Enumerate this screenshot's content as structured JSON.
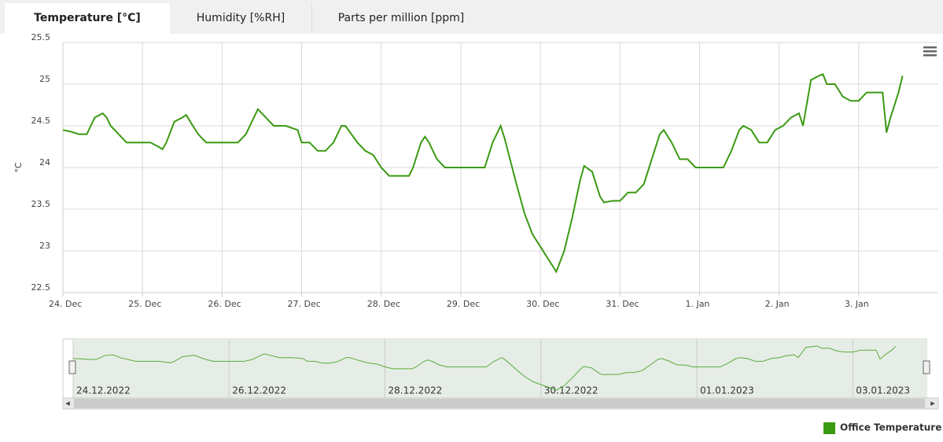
{
  "tabs": [
    "Temperature [°C]",
    "Humidity [%RH]",
    "Parts per million [ppm]"
  ],
  "chart_data": {
    "type": "line",
    "y_label": "°C",
    "xlim": [
      0,
      11
    ],
    "ylim": [
      22.5,
      25.5
    ],
    "xticks": [
      {
        "value": 0,
        "label": "24. Dec"
      },
      {
        "value": 1,
        "label": "25. Dec"
      },
      {
        "value": 2,
        "label": "26. Dec"
      },
      {
        "value": 3,
        "label": "27. Dec"
      },
      {
        "value": 4,
        "label": "28. Dec"
      },
      {
        "value": 5,
        "label": "29. Dec"
      },
      {
        "value": 6,
        "label": "30. Dec"
      },
      {
        "value": 7,
        "label": "31. Dec"
      },
      {
        "value": 8,
        "label": "1. Jan"
      },
      {
        "value": 9,
        "label": "2. Jan"
      },
      {
        "value": 10,
        "label": "3. Jan"
      }
    ],
    "yticks": [
      22.5,
      23,
      23.5,
      24,
      24.5,
      25,
      25.5
    ],
    "grid": true,
    "legend": "bottom-right",
    "x": [
      0,
      0.1,
      0.2,
      0.3,
      0.35,
      0.4,
      0.5,
      0.55,
      0.6,
      0.7,
      0.8,
      0.9,
      1.0,
      1.1,
      1.2,
      1.25,
      1.3,
      1.4,
      1.5,
      1.55,
      1.6,
      1.7,
      1.8,
      2.2,
      2.3,
      2.4,
      2.45,
      2.55,
      2.65,
      2.8,
      2.95,
      3.0,
      3.1,
      3.2,
      3.3,
      3.4,
      3.5,
      3.55,
      3.7,
      3.8,
      3.9,
      4.0,
      4.1,
      4.35,
      4.4,
      4.5,
      4.55,
      4.6,
      4.7,
      4.8,
      5.3,
      5.4,
      5.5,
      5.55,
      5.7,
      5.8,
      5.9,
      6.0,
      6.1,
      6.2,
      6.3,
      6.4,
      6.5,
      6.55,
      6.65,
      6.75,
      6.8,
      6.9,
      7.0,
      7.1,
      7.2,
      7.3,
      7.4,
      7.5,
      7.55,
      7.65,
      7.75,
      7.85,
      7.95,
      8.3,
      8.4,
      8.5,
      8.55,
      8.65,
      8.75,
      8.85,
      8.95,
      9.05,
      9.15,
      9.25,
      9.3,
      9.4,
      9.5,
      9.55,
      9.6,
      9.7,
      9.8,
      9.9,
      10.0,
      10.1,
      10.3,
      10.35,
      10.4,
      10.5,
      10.55
    ],
    "series": [
      {
        "name": "Office Temperature",
        "color": "#3a9a12",
        "values": [
          24.45,
          24.43,
          24.4,
          24.4,
          24.5,
          24.6,
          24.65,
          24.6,
          24.5,
          24.4,
          24.3,
          24.3,
          24.3,
          24.3,
          24.25,
          24.22,
          24.3,
          24.55,
          24.6,
          24.63,
          24.55,
          24.4,
          24.3,
          24.3,
          24.4,
          24.6,
          24.7,
          24.6,
          24.5,
          24.5,
          24.45,
          24.3,
          24.3,
          24.2,
          24.2,
          24.3,
          24.5,
          24.5,
          24.3,
          24.2,
          24.15,
          24.0,
          23.9,
          23.9,
          24.0,
          24.3,
          24.37,
          24.3,
          24.1,
          24.0,
          24.0,
          24.3,
          24.5,
          24.35,
          23.8,
          23.45,
          23.2,
          23.05,
          22.9,
          22.75,
          23.0,
          23.4,
          23.85,
          24.02,
          23.95,
          23.65,
          23.58,
          23.6,
          23.6,
          23.7,
          23.7,
          23.8,
          24.1,
          24.4,
          24.45,
          24.3,
          24.1,
          24.1,
          24.0,
          24.0,
          24.2,
          24.45,
          24.5,
          24.45,
          24.3,
          24.3,
          24.45,
          24.5,
          24.6,
          24.65,
          24.5,
          25.05,
          25.1,
          25.12,
          25.0,
          25.0,
          24.85,
          24.8,
          24.8,
          24.9,
          24.9,
          24.42,
          24.6,
          24.9,
          25.1
        ]
      }
    ]
  },
  "navigator": {
    "xticks": [
      {
        "value": 0,
        "label": "24.12.2022"
      },
      {
        "value": 2,
        "label": "26.12.2022"
      },
      {
        "value": 4,
        "label": "28.12.2022"
      },
      {
        "value": 6,
        "label": "30.12.2022"
      },
      {
        "value": 8,
        "label": "01.01.2023"
      },
      {
        "value": 10,
        "label": "03.01.2023"
      }
    ]
  }
}
